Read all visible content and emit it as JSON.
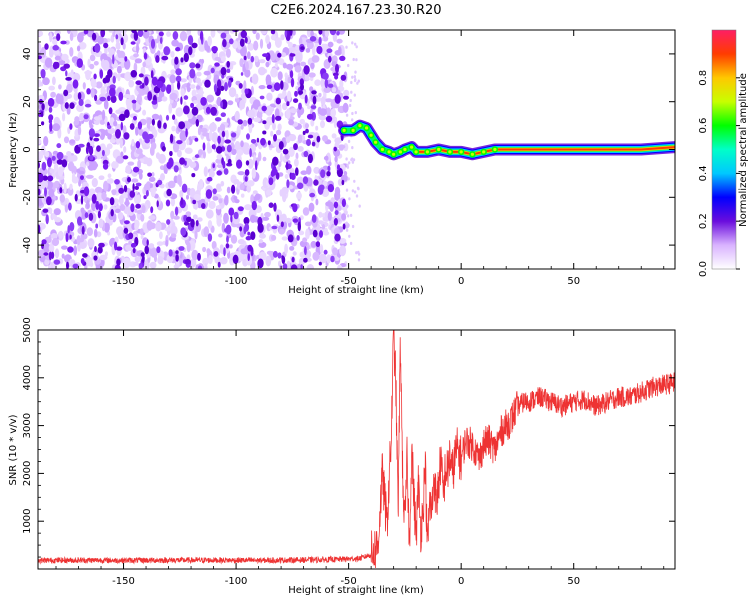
{
  "figure_title": "C2E6.2024.167.23.30.R20",
  "colors": {
    "signal": "#ee3333",
    "noise_light": "#d8b8ff",
    "noise_dark": "#6a0ddd",
    "axis": "#000000"
  },
  "chart_data": [
    {
      "type": "heatmap",
      "title": "C2E6.2024.167.23.30.R20",
      "xlabel": "Height of straight line (km)",
      "ylabel": "Frequency (Hz)",
      "xlim": [
        -188,
        95
      ],
      "ylim": [
        -50,
        50
      ],
      "xticks": [
        -150,
        -100,
        -50,
        0,
        50
      ],
      "yticks": [
        -40,
        -20,
        0,
        20,
        40
      ],
      "grid": false,
      "noise_region_x": [
        -188,
        -51
      ],
      "ridge": {
        "x": [
          -52,
          -48,
          -45,
          -42,
          -40,
          -38,
          -35,
          -32,
          -30,
          -27,
          -25,
          -22,
          -20,
          -15,
          -10,
          -5,
          0,
          5,
          10,
          15,
          20,
          40,
          60,
          80,
          95
        ],
        "y": [
          8,
          8,
          10,
          9,
          6,
          3,
          0,
          -1,
          -2,
          -1,
          0,
          1,
          -1,
          -1,
          0,
          -1,
          -1,
          -2,
          -1,
          0,
          0,
          0,
          0,
          0,
          1
        ]
      },
      "colorbar": {
        "label": "Normalized spectral amplitude",
        "range": [
          0,
          1
        ],
        "ticks": [
          0.0,
          0.2,
          0.4,
          0.6,
          0.8
        ],
        "scale": [
          {
            "value": 0.0,
            "color": "#ffffff"
          },
          {
            "value": 0.1,
            "color": "#d9b3ff"
          },
          {
            "value": 0.2,
            "color": "#6a0ddd"
          },
          {
            "value": 0.3,
            "color": "#0000ff"
          },
          {
            "value": 0.4,
            "color": "#00c8ff"
          },
          {
            "value": 0.5,
            "color": "#00ffc8"
          },
          {
            "value": 0.6,
            "color": "#00ff00"
          },
          {
            "value": 0.7,
            "color": "#c8ff00"
          },
          {
            "value": 0.8,
            "color": "#ffc800"
          },
          {
            "value": 0.9,
            "color": "#ff3c00"
          },
          {
            "value": 1.0,
            "color": "#ff1e64"
          }
        ]
      }
    },
    {
      "type": "line",
      "xlabel": "Height of straight line (km)",
      "ylabel": "SNR (10 * v/v)",
      "xlim": [
        -188,
        95
      ],
      "ylim": [
        0,
        5000
      ],
      "xticks": [
        -150,
        -100,
        -50,
        0,
        50
      ],
      "yticks": [
        1000,
        2000,
        3000,
        4000,
        5000
      ],
      "grid": false,
      "series": [
        {
          "x": [
            -188,
            -170,
            -150,
            -130,
            -110,
            -90,
            -70,
            -55,
            -45,
            -40,
            -37,
            -35,
            -33,
            -31,
            -30,
            -29,
            -28,
            -27,
            -26,
            -25,
            -24,
            -23,
            -22,
            -21,
            -20,
            -19,
            -18,
            -17,
            -16,
            -15,
            -14,
            -13,
            -12,
            -11,
            -10,
            -9,
            -8,
            -7,
            -6,
            -5,
            -4,
            -2,
            0,
            2,
            5,
            8,
            10,
            12,
            15,
            18,
            20,
            22,
            25,
            28,
            30,
            35,
            40,
            45,
            50,
            55,
            60,
            65,
            70,
            75,
            80,
            85,
            90,
            95
          ],
          "y": [
            180,
            185,
            180,
            185,
            185,
            180,
            190,
            200,
            220,
            300,
            500,
            2000,
            900,
            2800,
            5000,
            3800,
            1200,
            4800,
            2000,
            800,
            2400,
            400,
            2600,
            1500,
            700,
            1800,
            800,
            1200,
            2300,
            400,
            1400,
            1200,
            2000,
            1300,
            1800,
            2300,
            1500,
            2100,
            2000,
            2400,
            2000,
            2500,
            2300,
            2700,
            2600,
            2300,
            2600,
            2700,
            2500,
            2900,
            3000,
            3100,
            3400,
            3500,
            3500,
            3600,
            3500,
            3400,
            3500,
            3550,
            3400,
            3500,
            3600,
            3600,
            3700,
            3800,
            3850,
            3900
          ]
        }
      ]
    }
  ]
}
